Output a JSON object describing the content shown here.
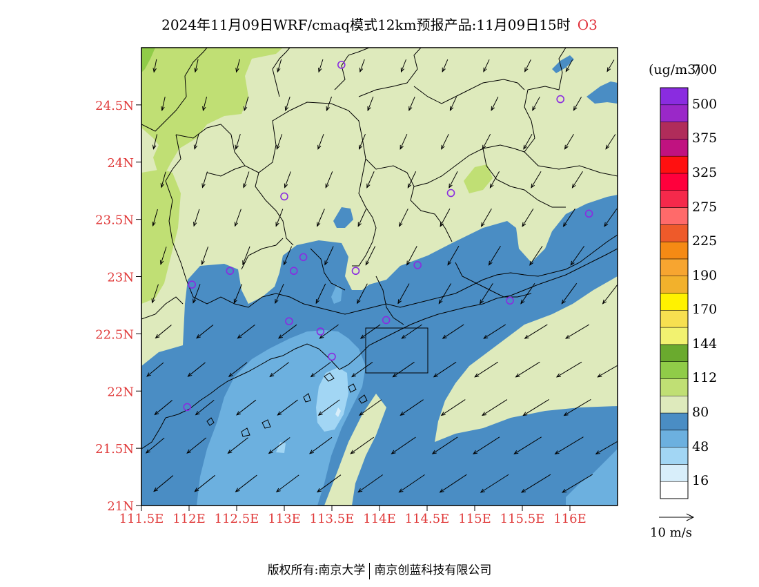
{
  "title": {
    "text": "2024年11月09日WRF/cmaq模式12km预报产品:11月09日15时",
    "pollutant": "O3"
  },
  "colorbar": {
    "unit": "(ug/m3)",
    "colors": [
      "#ffffff",
      "#d8eefa",
      "#a2d6f4",
      "#6cb0df",
      "#4a8dc4",
      "#deeabc",
      "#c0df74",
      "#90cc48",
      "#6aaa2e",
      "#f2f270",
      "#f7e050",
      "#fff200",
      "#f2b12c",
      "#f7a530",
      "#f58a14",
      "#ee5a2a",
      "#ff6a6a",
      "#f5294b",
      "#ff003c",
      "#ff1010",
      "#c01280",
      "#b02c5a",
      "#9a28c8",
      "#8a2ce0"
    ],
    "labels": [
      "16",
      "48",
      "80",
      "112",
      "144",
      "170",
      "190",
      "225",
      "275",
      "325",
      "375",
      "500",
      "700"
    ]
  },
  "axes": {
    "x_ticks": [
      "111.5E",
      "112E",
      "112.5E",
      "113E",
      "113.5E",
      "114E",
      "114.5E",
      "115E",
      "115.5E",
      "116E"
    ],
    "y_ticks": [
      "21N",
      "21.5N",
      "22N",
      "22.5N",
      "23N",
      "23.5N",
      "24N",
      "24.5N"
    ],
    "tick_color": "#e03a3a"
  },
  "wind_reference": {
    "label": "10 m/s"
  },
  "footer": {
    "left": "版权所有:南京大学",
    "right": "南京创蓝科技有限公司"
  },
  "stations": [
    {
      "lon": 113.6,
      "lat": 24.85
    },
    {
      "lon": 115.9,
      "lat": 24.55
    },
    {
      "lon": 113.0,
      "lat": 23.7
    },
    {
      "lon": 114.75,
      "lat": 23.73
    },
    {
      "lon": 116.2,
      "lat": 23.55
    },
    {
      "lon": 113.2,
      "lat": 23.17
    },
    {
      "lon": 112.43,
      "lat": 23.05
    },
    {
      "lon": 113.1,
      "lat": 23.05
    },
    {
      "lon": 113.75,
      "lat": 23.05
    },
    {
      "lon": 114.4,
      "lat": 23.1
    },
    {
      "lon": 112.03,
      "lat": 22.93
    },
    {
      "lon": 115.37,
      "lat": 22.79
    },
    {
      "lon": 113.05,
      "lat": 22.61
    },
    {
      "lon": 114.07,
      "lat": 22.62
    },
    {
      "lon": 113.38,
      "lat": 22.52
    },
    {
      "lon": 113.5,
      "lat": 22.3
    },
    {
      "lon": 111.98,
      "lat": 21.86
    }
  ]
}
